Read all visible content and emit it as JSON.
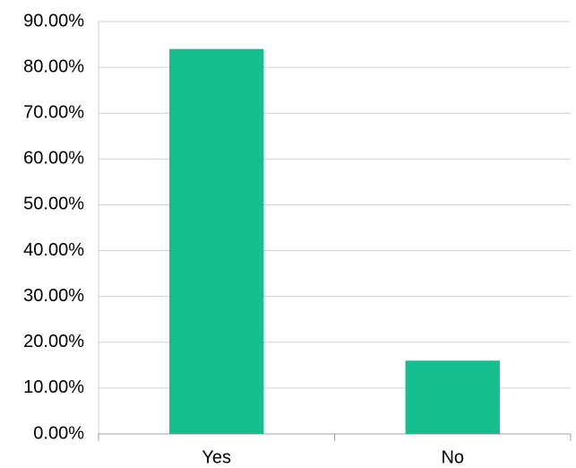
{
  "chart_data": {
    "type": "bar",
    "categories": [
      "Yes",
      "No"
    ],
    "values": [
      84,
      16
    ],
    "color": "#14be8f",
    "ylim": [
      0,
      90
    ],
    "yticks": [
      {
        "value": 0,
        "label": "0.00%"
      },
      {
        "value": 10,
        "label": "10.00%"
      },
      {
        "value": 20,
        "label": "20.00%"
      },
      {
        "value": 30,
        "label": "30.00%"
      },
      {
        "value": 40,
        "label": "40.00%"
      },
      {
        "value": 50,
        "label": "50.00%"
      },
      {
        "value": 60,
        "label": "60.00%"
      },
      {
        "value": 70,
        "label": "70.00%"
      },
      {
        "value": 80,
        "label": "80.00%"
      },
      {
        "value": 90,
        "label": "90.00%"
      }
    ],
    "grid": true
  }
}
